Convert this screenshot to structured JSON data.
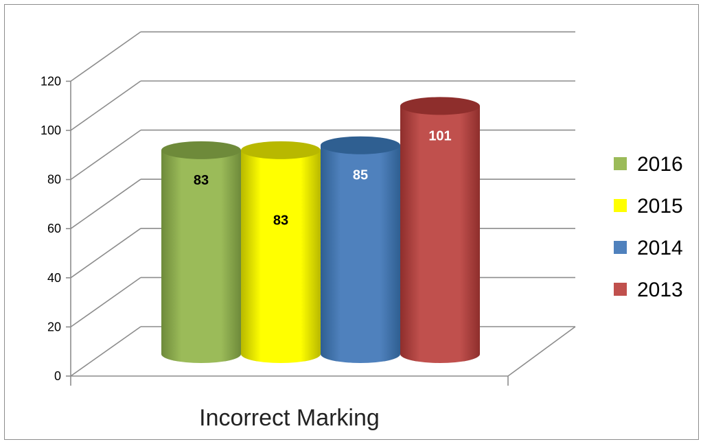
{
  "chart_data": {
    "type": "bar",
    "style": "3d-cylinder",
    "categories": [
      "Incorrect Marking"
    ],
    "series": [
      {
        "name": "2016",
        "values": [
          83
        ],
        "color": "#9bbb59",
        "dark": "#6e8a3a",
        "label_color": "#000000"
      },
      {
        "name": "2015",
        "values": [
          83
        ],
        "color": "#ffff00",
        "dark": "#b8b800",
        "label_color": "#000000"
      },
      {
        "name": "2014",
        "values": [
          85
        ],
        "color": "#4f81bd",
        "dark": "#2f5f91",
        "label_color": "#ffffff"
      },
      {
        "name": "2013",
        "values": [
          101
        ],
        "color": "#c0504d",
        "dark": "#8e2e2c",
        "label_color": "#ffffff"
      }
    ],
    "ylim": [
      0,
      120
    ],
    "yticks": [
      0,
      20,
      40,
      60,
      80,
      100,
      120
    ],
    "grid": true,
    "legend_position": "right",
    "title": "",
    "xlabel": "",
    "ylabel": ""
  }
}
